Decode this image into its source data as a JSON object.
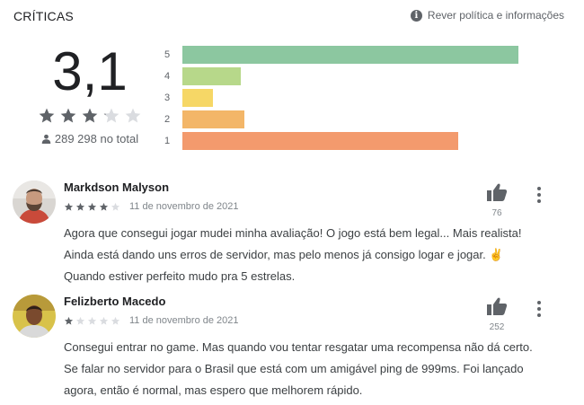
{
  "header": {
    "title": "CRÍTICAS",
    "policy_link": "Rever política e informações"
  },
  "rating": {
    "value": "3,1",
    "stars": 3.1,
    "total": "289 298 no total"
  },
  "histogram": [
    {
      "label": "5",
      "fraction": 0.89,
      "color": "#8cc7a0"
    },
    {
      "label": "4",
      "fraction": 0.155,
      "color": "#b7d88a"
    },
    {
      "label": "3",
      "fraction": 0.08,
      "color": "#f6d766"
    },
    {
      "label": "2",
      "fraction": 0.165,
      "color": "#f3b668"
    },
    {
      "label": "1",
      "fraction": 0.73,
      "color": "#f39a6d"
    }
  ],
  "reviews": [
    {
      "name": "Markdson Malyson",
      "stars": 4,
      "date": "11 de novembro de 2021",
      "likes": "76",
      "lines": [
        "Agora que consegui jogar mudei minha avaliação! O jogo está bem legal... Mais realista!",
        "Ainda está dando uns erros de servidor, mas pelo menos já consigo logar e jogar. ✌",
        "Quando estiver perfeito mudo pra 5 estrelas."
      ]
    },
    {
      "name": "Felizberto Macedo",
      "stars": 1,
      "date": "11 de novembro de 2021",
      "likes": "252",
      "lines": [
        "Consegui entrar no game. Mas quando vou tentar resgatar uma recompensa não dá certo.",
        "Se falar no servidor para o Brasil que está com um amigável ping de 999ms. Foi lançado",
        "agora, então é normal, mas espero que melhorem rápido."
      ]
    }
  ],
  "colors": {
    "star_filled": "#5f6368",
    "star_empty": "#dadce0"
  }
}
